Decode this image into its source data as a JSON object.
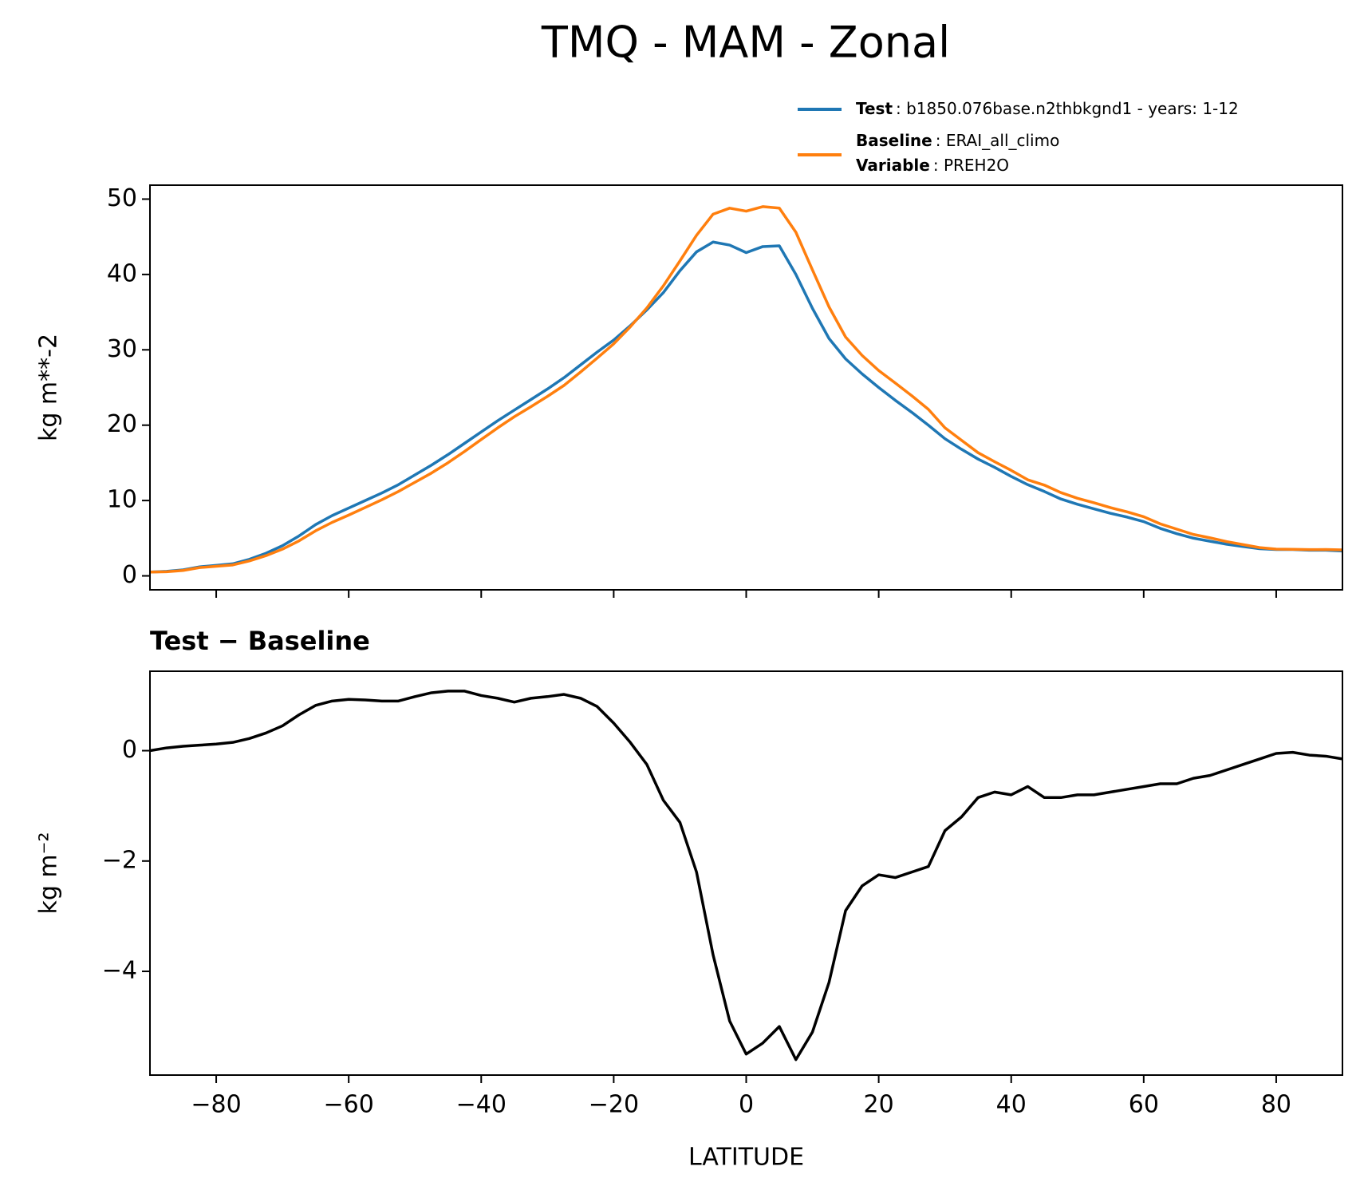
{
  "chart_data": [
    {
      "type": "line",
      "title": "TMQ - MAM - Zonal",
      "ylabel": "kg m**-2",
      "x": [
        -90,
        -87.5,
        -85,
        -82.5,
        -80,
        -77.5,
        -75,
        -72.5,
        -70,
        -67.5,
        -65,
        -62.5,
        -60,
        -57.5,
        -55,
        -52.5,
        -50,
        -47.5,
        -45,
        -42.5,
        -40,
        -37.5,
        -35,
        -32.5,
        -30,
        -27.5,
        -25,
        -22.5,
        -20,
        -17.5,
        -15,
        -12.5,
        -10,
        -7.5,
        -5,
        -2.5,
        0,
        2.5,
        5,
        7.5,
        10,
        12.5,
        15,
        17.5,
        20,
        22.5,
        25,
        27.5,
        30,
        32.5,
        35,
        37.5,
        40,
        42.5,
        45,
        47.5,
        50,
        52.5,
        55,
        57.5,
        60,
        62.5,
        65,
        67.5,
        70,
        72.5,
        75,
        77.5,
        80,
        82.5,
        85,
        87.5,
        90
      ],
      "series": [
        {
          "name": "Test",
          "description": ": b1850.076base.n2thbkgnd1 - years: 1-12",
          "color": "#1f77b4",
          "values": [
            0.5,
            0.6,
            0.8,
            1.2,
            1.4,
            1.6,
            2.2,
            3.0,
            4.0,
            5.3,
            6.8,
            8.0,
            9.0,
            10.0,
            11.0,
            12.1,
            13.4,
            14.7,
            16.1,
            17.6,
            19.1,
            20.6,
            22.0,
            23.4,
            24.8,
            26.3,
            28.0,
            29.7,
            31.3,
            33.2,
            35.3,
            37.6,
            40.5,
            43.0,
            44.3,
            43.9,
            42.9,
            43.7,
            43.8,
            40.0,
            35.5,
            31.5,
            28.8,
            26.8,
            25.0,
            23.3,
            21.7,
            20.0,
            18.2,
            16.8,
            15.5,
            14.4,
            13.2,
            12.1,
            11.2,
            10.2,
            9.5,
            8.9,
            8.3,
            7.8,
            7.2,
            6.3,
            5.6,
            5.0,
            4.6,
            4.2,
            3.9,
            3.6,
            3.5,
            3.5,
            3.4,
            3.4,
            3.3
          ]
        },
        {
          "name": "Baseline",
          "description": ": ERAI_all_climo",
          "color": "#ff7f0e",
          "values": [
            0.5,
            0.55,
            0.72,
            1.1,
            1.28,
            1.45,
            1.98,
            2.68,
            3.55,
            4.65,
            5.98,
            7.1,
            8.07,
            9.08,
            10.1,
            11.2,
            12.42,
            13.65,
            15.02,
            16.52,
            18.1,
            19.65,
            21.12,
            22.45,
            23.82,
            25.28,
            27.05,
            28.9,
            30.8,
            33.05,
            35.55,
            38.5,
            41.8,
            45.2,
            48.0,
            48.8,
            48.4,
            49.0,
            48.8,
            45.6,
            40.6,
            35.7,
            31.7,
            29.25,
            27.25,
            25.6,
            23.9,
            22.1,
            19.65,
            18.0,
            16.35,
            15.15,
            14.0,
            12.75,
            12.05,
            11.05,
            10.3,
            9.7,
            9.05,
            8.5,
            7.85,
            6.9,
            6.2,
            5.5,
            5.05,
            4.55,
            4.15,
            3.75,
            3.55,
            3.53,
            3.48,
            3.5,
            3.45
          ]
        }
      ],
      "legend_extra": {
        "name": "Variable",
        "description": ": PREH2O"
      },
      "xlim": [
        -90,
        90
      ],
      "xticks": [
        -80,
        -60,
        -40,
        -20,
        0,
        20,
        40,
        60,
        80
      ],
      "ylim": [
        -1.85,
        51.85
      ],
      "yticks": [
        0,
        10,
        20,
        30,
        40,
        50
      ]
    },
    {
      "type": "line",
      "title": "Test − Baseline",
      "xlabel": "LATITUDE",
      "ylabel": "kg m⁻²",
      "x": [
        -90,
        -87.5,
        -85,
        -82.5,
        -80,
        -77.5,
        -75,
        -72.5,
        -70,
        -67.5,
        -65,
        -62.5,
        -60,
        -57.5,
        -55,
        -52.5,
        -50,
        -47.5,
        -45,
        -42.5,
        -40,
        -37.5,
        -35,
        -32.5,
        -30,
        -27.5,
        -25,
        -22.5,
        -20,
        -17.5,
        -15,
        -12.5,
        -10,
        -7.5,
        -5,
        -2.5,
        0,
        2.5,
        5,
        7.5,
        10,
        12.5,
        15,
        17.5,
        20,
        22.5,
        25,
        27.5,
        30,
        32.5,
        35,
        37.5,
        40,
        42.5,
        45,
        47.5,
        50,
        52.5,
        55,
        57.5,
        60,
        62.5,
        65,
        67.5,
        70,
        72.5,
        75,
        77.5,
        80,
        82.5,
        85,
        87.5,
        90
      ],
      "series": [
        {
          "color": "#000000",
          "values": [
            0,
            0.05,
            0.08,
            0.1,
            0.12,
            0.15,
            0.22,
            0.32,
            0.45,
            0.65,
            0.82,
            0.9,
            0.93,
            0.92,
            0.9,
            0.9,
            0.98,
            1.05,
            1.08,
            1.08,
            1.0,
            0.95,
            0.88,
            0.95,
            0.98,
            1.02,
            0.95,
            0.8,
            0.5,
            0.15,
            -0.25,
            -0.9,
            -1.3,
            -2.2,
            -3.7,
            -4.9,
            -5.5,
            -5.3,
            -5.0,
            -5.6,
            -5.1,
            -4.2,
            -2.9,
            -2.45,
            -2.25,
            -2.3,
            -2.2,
            -2.1,
            -1.45,
            -1.2,
            -0.85,
            -0.75,
            -0.8,
            -0.65,
            -0.85,
            -0.85,
            -0.8,
            -0.8,
            -0.75,
            -0.7,
            -0.65,
            -0.6,
            -0.6,
            -0.5,
            -0.45,
            -0.35,
            -0.25,
            -0.15,
            -0.05,
            -0.03,
            -0.08,
            -0.1,
            -0.15
          ]
        }
      ],
      "xlim": [
        -90,
        90
      ],
      "xticks": [
        {
          "value": -80,
          "label": "−80"
        },
        {
          "value": -60,
          "label": "−60"
        },
        {
          "value": -40,
          "label": "−40"
        },
        {
          "value": -20,
          "label": "−20"
        },
        0,
        20,
        40,
        60,
        80
      ],
      "ylim": [
        -5.88,
        1.44
      ],
      "yticks": [
        {
          "value": -4,
          "label": "−4"
        },
        {
          "value": -2,
          "label": "−2"
        },
        0
      ]
    }
  ]
}
